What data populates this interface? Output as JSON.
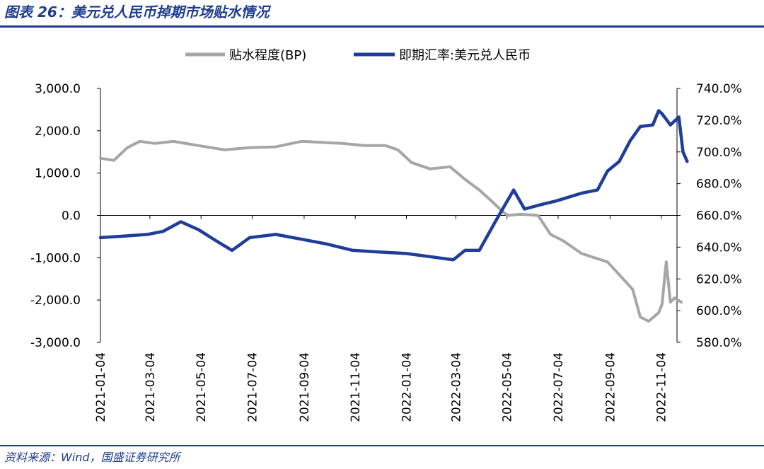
{
  "header": {
    "title": "图表 26：美元兑人民币掉期市场贴水情况"
  },
  "footer": {
    "source": "资料来源：Wind，国盛证券研究所"
  },
  "colors": {
    "brand": "#1f3d8f",
    "series1": "#a6a6a6",
    "series2": "#1f3d9a"
  },
  "chart_data": {
    "type": "line",
    "title": "美元兑人民币掉期市场贴水情况",
    "legend": [
      "贴水程度(BP)",
      "即期汇率:美元兑人民币"
    ],
    "legend_position": "top",
    "x_tick_labels": [
      "2021-01-04",
      "2021-03-04",
      "2021-05-04",
      "2021-07-04",
      "2021-09-04",
      "2021-11-04",
      "2022-01-04",
      "2022-03-04",
      "2022-05-04",
      "2022-07-04",
      "2022-09-04",
      "2022-11-04"
    ],
    "left_axis": {
      "ylim": [
        -3000,
        3000
      ],
      "tick_labels": [
        "3,000.0",
        "2,000.0",
        "1,000.0",
        "0.0",
        "-1,000.0",
        "-2,000.0",
        "-3,000.0"
      ]
    },
    "right_axis": {
      "ylim": [
        580,
        740
      ],
      "tick_labels": [
        "740.0%",
        "720.0%",
        "700.0%",
        "680.0%",
        "660.0%",
        "640.0%",
        "620.0%",
        "600.0%",
        "580.0%"
      ]
    },
    "series": [
      {
        "name": "贴水程度(BP)",
        "axis": "left",
        "x": [
          "2021-01-04",
          "2021-01-20",
          "2021-02-05",
          "2021-02-20",
          "2021-03-10",
          "2021-04-01",
          "2021-05-01",
          "2021-06-01",
          "2021-07-01",
          "2021-08-01",
          "2021-09-01",
          "2021-10-01",
          "2021-10-20",
          "2021-11-15",
          "2021-12-10",
          "2021-12-25",
          "2022-01-10",
          "2022-02-01",
          "2022-02-25",
          "2022-03-15",
          "2022-04-01",
          "2022-04-15",
          "2022-05-01",
          "2022-05-06",
          "2022-05-20",
          "2022-06-10",
          "2022-06-25",
          "2022-07-10",
          "2022-08-01",
          "2022-09-01",
          "2022-09-15",
          "2022-10-01",
          "2022-10-10",
          "2022-10-20",
          "2022-11-01",
          "2022-11-05",
          "2022-11-10",
          "2022-11-15",
          "2022-11-20",
          "2022-11-28"
        ],
        "values": [
          1350,
          1300,
          1600,
          1750,
          1700,
          1750,
          1650,
          1550,
          1600,
          1620,
          1750,
          1720,
          1700,
          1650,
          1650,
          1550,
          1250,
          1100,
          1150,
          850,
          600,
          350,
          50,
          0,
          30,
          0,
          -450,
          -600,
          -900,
          -1100,
          -1400,
          -1750,
          -2400,
          -2500,
          -2300,
          -2100,
          -1100,
          -2050,
          -1950,
          -2050
        ]
      },
      {
        "name": "即期汇率:美元兑人民币",
        "axis": "right",
        "x": [
          "2021-01-04",
          "2021-02-01",
          "2021-03-01",
          "2021-03-20",
          "2021-04-10",
          "2021-05-01",
          "2021-05-25",
          "2021-06-10",
          "2021-07-01",
          "2021-08-01",
          "2021-09-01",
          "2021-10-01",
          "2021-11-01",
          "2021-12-01",
          "2022-01-04",
          "2022-02-01",
          "2022-03-01",
          "2022-03-15",
          "2022-04-01",
          "2022-04-20",
          "2022-05-01",
          "2022-05-12",
          "2022-05-25",
          "2022-06-15",
          "2022-07-01",
          "2022-08-01",
          "2022-08-20",
          "2022-09-01",
          "2022-09-15",
          "2022-09-28",
          "2022-10-10",
          "2022-10-25",
          "2022-11-01",
          "2022-11-05",
          "2022-11-15",
          "2022-11-25",
          "2022-11-30",
          "2022-12-05"
        ],
        "values": [
          646,
          647,
          648,
          650,
          656,
          651,
          643,
          638,
          646,
          648,
          645,
          642,
          638,
          637,
          636,
          634,
          632,
          638,
          638,
          656,
          666,
          676,
          664,
          667,
          669,
          674,
          676,
          688,
          694,
          707,
          716,
          717,
          726,
          724,
          717,
          722,
          700,
          694
        ]
      }
    ]
  }
}
